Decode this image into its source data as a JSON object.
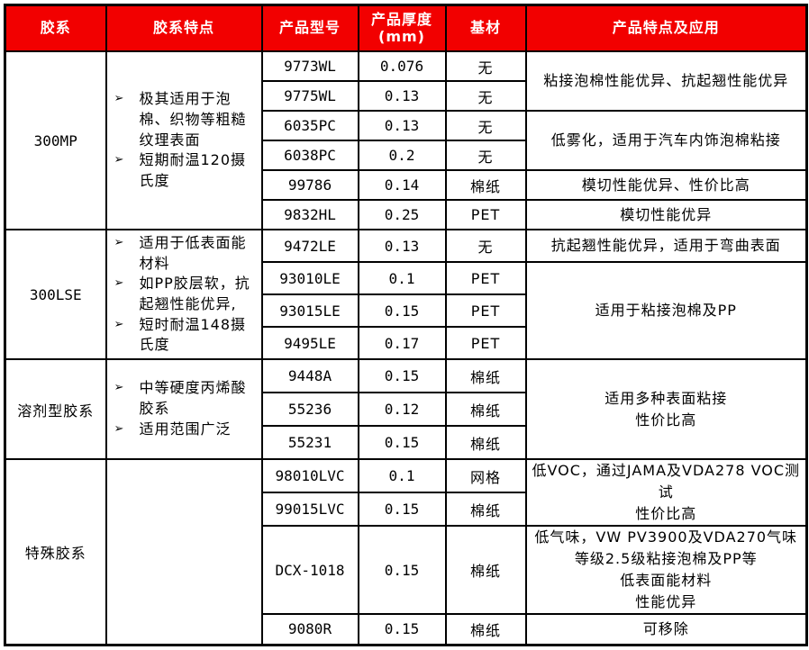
{
  "colors": {
    "header_bg": "#f20000",
    "header_text": "#ffffff",
    "border": "#000000",
    "body_text": "#000000"
  },
  "table": {
    "bullet_icon": "➢",
    "header": {
      "cells": [
        {
          "label": "胶系"
        },
        {
          "label": "胶系特点"
        },
        {
          "label": "产品型号"
        },
        {
          "label": "产品厚度\n(mm)"
        },
        {
          "label": "基材"
        },
        {
          "label": "产品特点及应用"
        }
      ]
    },
    "groups": [
      {
        "system": "300MP",
        "features": [
          "极其适用于泡棉、织物等粗糙纹理表面",
          "短期耐温120摄氏度"
        ],
        "products": [
          {
            "model": "9773WL",
            "thickness": "0.076",
            "substrate": "无"
          },
          {
            "model": "9775WL",
            "thickness": "0.13",
            "substrate": "无"
          },
          {
            "model": "6035PC",
            "thickness": "0.13",
            "substrate": "无"
          },
          {
            "model": "6038PC",
            "thickness": "0.2",
            "substrate": "无"
          },
          {
            "model": "99786",
            "thickness": "0.14",
            "substrate": "棉纸"
          },
          {
            "model": "9832HL",
            "thickness": "0.25",
            "substrate": "PET"
          }
        ],
        "applications": [
          {
            "text": "粘接泡棉性能优异、抗起翘性能优异"
          },
          {
            "text": "低雾化，适用于汽车内饰泡棉粘接"
          },
          {
            "text": "模切性能优异、性价比高"
          },
          {
            "text": "模切性能优异"
          }
        ]
      },
      {
        "system": "300LSE",
        "features": [
          "适用于低表面能材料",
          "如PP胶层软，抗起翘性能优异,",
          "短时耐温148摄氏度"
        ],
        "products": [
          {
            "model": "9472LE",
            "thickness": "0.13",
            "substrate": "无"
          },
          {
            "model": "93010LE",
            "thickness": "0.1",
            "substrate": "PET"
          },
          {
            "model": "93015LE",
            "thickness": "0.15",
            "substrate": "PET"
          },
          {
            "model": "9495LE",
            "thickness": "0.17",
            "substrate": "PET"
          }
        ],
        "applications": [
          {
            "text": "抗起翘性能优异，适用于弯曲表面"
          },
          {
            "text": "适用于粘接泡棉及PP"
          }
        ]
      },
      {
        "system": "溶剂型胶系",
        "features": [
          "中等硬度丙烯酸胶系",
          "适用范围广泛"
        ],
        "products": [
          {
            "model": "9448A",
            "thickness": "0.15",
            "substrate": "棉纸"
          },
          {
            "model": "55236",
            "thickness": "0.12",
            "substrate": "棉纸"
          },
          {
            "model": "55231",
            "thickness": "0.15",
            "substrate": "棉纸"
          }
        ],
        "applications": [
          {
            "text": "适用多种表面粘接\n性价比高"
          }
        ]
      },
      {
        "system": "特殊胶系",
        "features": [],
        "products": [
          {
            "model": "98010LVC",
            "thickness": "0.1",
            "substrate": "网格"
          },
          {
            "model": "99015LVC",
            "thickness": "0.15",
            "substrate": "棉纸"
          },
          {
            "model": "DCX-1018",
            "thickness": "0.15",
            "substrate": "棉纸"
          },
          {
            "model": "9080R",
            "thickness": "0.15",
            "substrate": "棉纸"
          }
        ],
        "applications": [
          {
            "text": "低VOC，通过JAMA及VDA278 VOC测试\n性价比高"
          },
          {
            "text": "低气味，VW PV3900及VDA270气味\n等级2.5级粘接泡棉及PP等\n低表面能材料\n性能优异"
          },
          {
            "text": "可移除"
          }
        ]
      }
    ]
  }
}
